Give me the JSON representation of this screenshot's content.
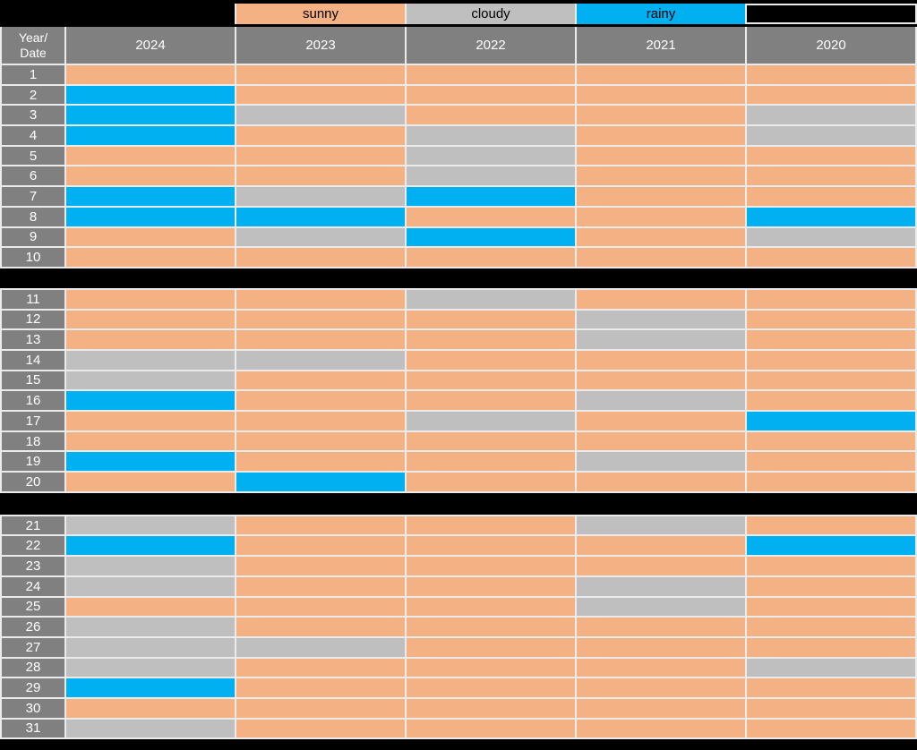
{
  "legend": {
    "items": [
      {
        "label": "sunny",
        "color": "#F4B183"
      },
      {
        "label": "cloudy",
        "color": "#BFBFBF"
      },
      {
        "label": "rainy",
        "color": "#00B0F0"
      }
    ]
  },
  "header": {
    "corner_line1": "Year/",
    "corner_line2": "Date",
    "years": [
      "2024",
      "2023",
      "2022",
      "2021",
      "2020"
    ]
  },
  "colors": {
    "sunny": "#F4B183",
    "cloudy": "#BFBFBF",
    "rainy": "#00B0F0",
    "header_bg": "#808080",
    "header_text": "#FFFFFF",
    "gridline": "#EBEBEB",
    "separator": "#000000"
  },
  "chart_data": {
    "type": "heatmap",
    "title": "",
    "description": "Calendar heatmap of daily weather condition (sunny / cloudy / rainy) for dates 1-31 across years 2024-2020",
    "legend_position": "top",
    "legend_entries": [
      "sunny",
      "cloudy",
      "rainy"
    ],
    "row_axis_label": "Year/Date",
    "columns": [
      "2024",
      "2023",
      "2022",
      "2021",
      "2020"
    ],
    "row_groups": [
      [
        1,
        10
      ],
      [
        11,
        20
      ],
      [
        21,
        31
      ]
    ],
    "rows": [
      {
        "date": "1",
        "states": [
          "sunny",
          "sunny",
          "sunny",
          "sunny",
          "sunny"
        ]
      },
      {
        "date": "2",
        "states": [
          "rainy",
          "sunny",
          "sunny",
          "sunny",
          "sunny"
        ]
      },
      {
        "date": "3",
        "states": [
          "rainy",
          "cloudy",
          "sunny",
          "sunny",
          "cloudy"
        ]
      },
      {
        "date": "4",
        "states": [
          "rainy",
          "sunny",
          "cloudy",
          "sunny",
          "cloudy"
        ]
      },
      {
        "date": "5",
        "states": [
          "sunny",
          "sunny",
          "cloudy",
          "sunny",
          "sunny"
        ]
      },
      {
        "date": "6",
        "states": [
          "sunny",
          "sunny",
          "cloudy",
          "sunny",
          "sunny"
        ]
      },
      {
        "date": "7",
        "states": [
          "rainy",
          "cloudy",
          "rainy",
          "sunny",
          "sunny"
        ]
      },
      {
        "date": "8",
        "states": [
          "rainy",
          "rainy",
          "sunny",
          "sunny",
          "rainy"
        ]
      },
      {
        "date": "9",
        "states": [
          "sunny",
          "cloudy",
          "rainy",
          "sunny",
          "cloudy"
        ]
      },
      {
        "date": "10",
        "states": [
          "sunny",
          "sunny",
          "sunny",
          "sunny",
          "sunny"
        ]
      },
      {
        "date": "11",
        "states": [
          "sunny",
          "sunny",
          "cloudy",
          "sunny",
          "sunny"
        ]
      },
      {
        "date": "12",
        "states": [
          "sunny",
          "sunny",
          "sunny",
          "cloudy",
          "sunny"
        ]
      },
      {
        "date": "13",
        "states": [
          "sunny",
          "sunny",
          "sunny",
          "cloudy",
          "sunny"
        ]
      },
      {
        "date": "14",
        "states": [
          "cloudy",
          "cloudy",
          "sunny",
          "sunny",
          "sunny"
        ]
      },
      {
        "date": "15",
        "states": [
          "cloudy",
          "sunny",
          "sunny",
          "sunny",
          "sunny"
        ]
      },
      {
        "date": "16",
        "states": [
          "rainy",
          "sunny",
          "sunny",
          "cloudy",
          "sunny"
        ]
      },
      {
        "date": "17",
        "states": [
          "sunny",
          "sunny",
          "cloudy",
          "sunny",
          "rainy"
        ]
      },
      {
        "date": "18",
        "states": [
          "sunny",
          "sunny",
          "sunny",
          "sunny",
          "sunny"
        ]
      },
      {
        "date": "19",
        "states": [
          "rainy",
          "sunny",
          "sunny",
          "cloudy",
          "sunny"
        ]
      },
      {
        "date": "20",
        "states": [
          "sunny",
          "rainy",
          "sunny",
          "sunny",
          "sunny"
        ]
      },
      {
        "date": "21",
        "states": [
          "cloudy",
          "sunny",
          "sunny",
          "cloudy",
          "sunny"
        ]
      },
      {
        "date": "22",
        "states": [
          "rainy",
          "sunny",
          "sunny",
          "sunny",
          "rainy"
        ]
      },
      {
        "date": "23",
        "states": [
          "cloudy",
          "sunny",
          "sunny",
          "sunny",
          "sunny"
        ]
      },
      {
        "date": "24",
        "states": [
          "cloudy",
          "sunny",
          "sunny",
          "cloudy",
          "sunny"
        ]
      },
      {
        "date": "25",
        "states": [
          "sunny",
          "sunny",
          "sunny",
          "cloudy",
          "sunny"
        ]
      },
      {
        "date": "26",
        "states": [
          "cloudy",
          "sunny",
          "sunny",
          "sunny",
          "sunny"
        ]
      },
      {
        "date": "27",
        "states": [
          "cloudy",
          "cloudy",
          "sunny",
          "sunny",
          "sunny"
        ]
      },
      {
        "date": "28",
        "states": [
          "cloudy",
          "sunny",
          "sunny",
          "sunny",
          "cloudy"
        ]
      },
      {
        "date": "29",
        "states": [
          "rainy",
          "sunny",
          "sunny",
          "sunny",
          "sunny"
        ]
      },
      {
        "date": "30",
        "states": [
          "sunny",
          "sunny",
          "sunny",
          "sunny",
          "sunny"
        ]
      },
      {
        "date": "31",
        "states": [
          "cloudy",
          "sunny",
          "sunny",
          "sunny",
          "sunny"
        ]
      }
    ]
  }
}
